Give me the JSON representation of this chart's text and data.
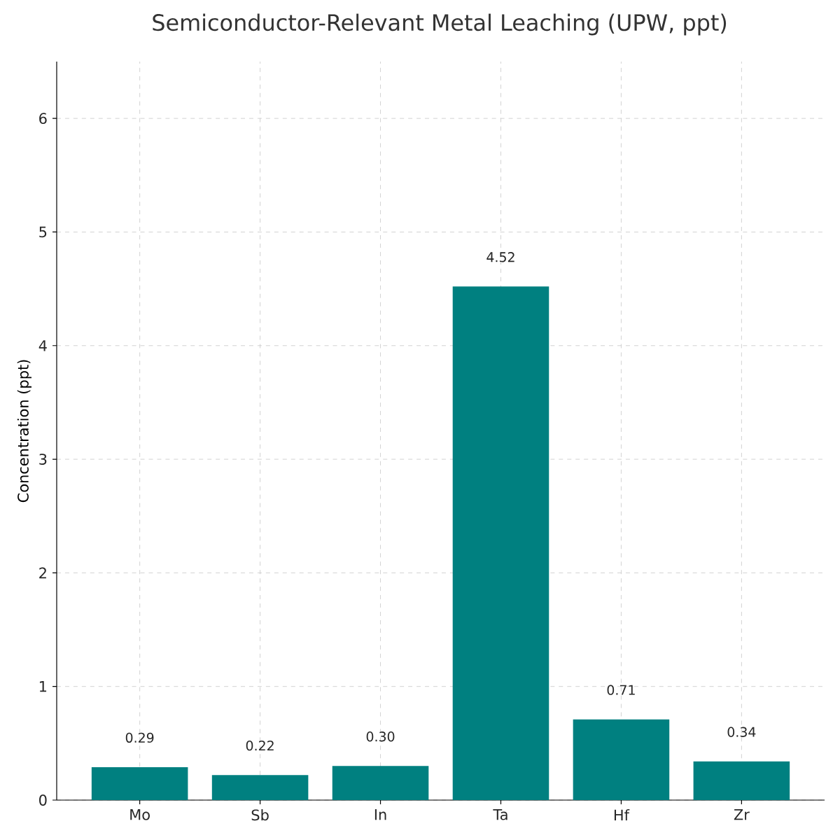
{
  "chart_data": {
    "type": "bar",
    "title": "Semiconductor-Relevant Metal Leaching (UPW, ppt)",
    "ylabel": "Concentration (ppt)",
    "categories": [
      "Mo",
      "Sb",
      "In",
      "Ta",
      "Hf",
      "Zr"
    ],
    "values": [
      0.29,
      0.22,
      0.3,
      4.52,
      0.71,
      0.34
    ],
    "value_labels": [
      "0.29",
      "0.22",
      "0.30",
      "4.52",
      "0.71",
      "0.34"
    ],
    "color": "#008080",
    "ylim": [
      0,
      6.5
    ],
    "yticks": [
      0,
      1,
      2,
      3,
      4,
      5,
      6
    ],
    "grid": true
  }
}
